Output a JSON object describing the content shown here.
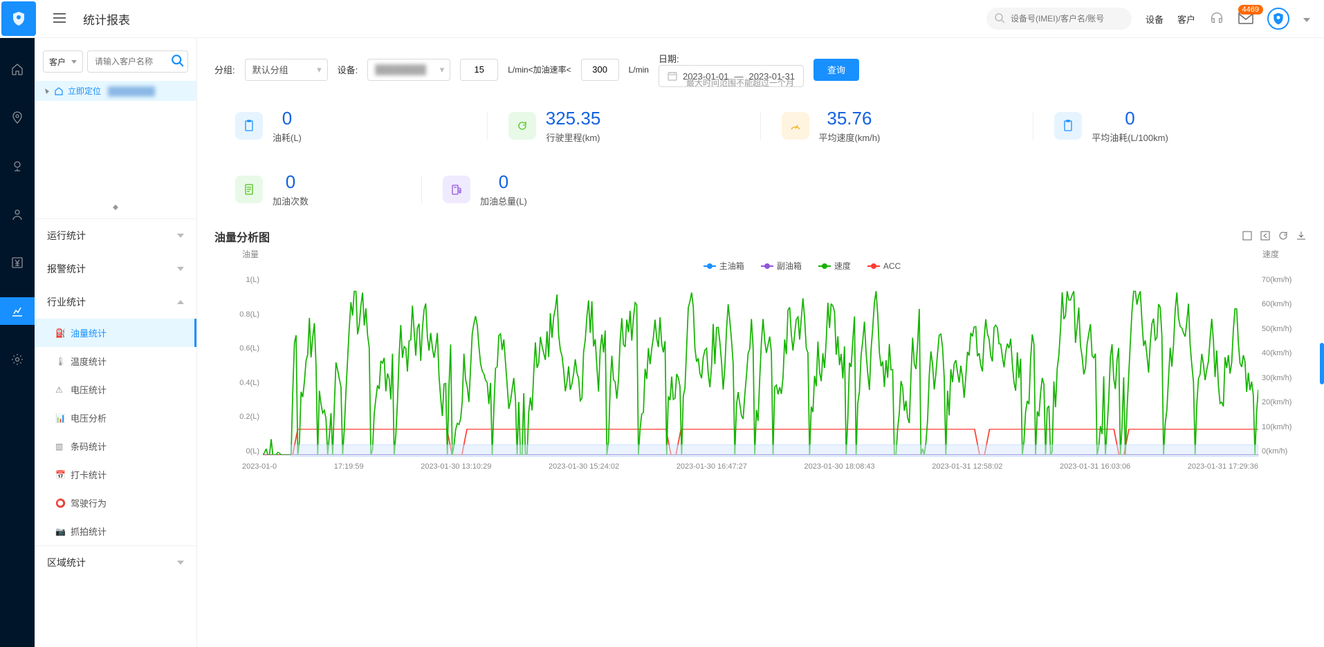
{
  "topbar": {
    "title": "统计报表",
    "search_placeholder": "设备号(IMEI)/客户名/账号",
    "link_device": "设备",
    "link_customer": "客户",
    "badge": "4469"
  },
  "sidebar": {
    "cust_label": "客户",
    "cust_placeholder": "请输入客户名称",
    "tree_locate": "立即定位",
    "tree_blur": "████████",
    "menu": {
      "run": "运行统计",
      "alarm": "报警统计",
      "industry": "行业统计",
      "region": "区域统计",
      "subs": {
        "oil": "油量统计",
        "temp": "温度统计",
        "volt": "电压统计",
        "volt_analysis": "电压分析",
        "barcode": "条码统计",
        "checkin": "打卡统计",
        "driving": "驾驶行为",
        "capture": "抓拍统计"
      }
    }
  },
  "filters": {
    "group_label": "分组:",
    "group_value": "默认分组",
    "device_label": "设备:",
    "device_value": "████████",
    "rate_min": "15",
    "rate_label": "L/min<加油速率<",
    "rate_max": "300",
    "rate_unit": "L/min",
    "date_label": "日期:",
    "date_from": "2023-01-01",
    "date_sep": "—",
    "date_to": "2023-01-31",
    "date_hint": "最大时间范围不能超过一个月",
    "query_btn": "查询"
  },
  "stats": [
    {
      "icon": "clipboard",
      "color": "blue",
      "value": "0",
      "label": "油耗(L)"
    },
    {
      "icon": "refresh",
      "color": "green",
      "value": "325.35",
      "label": "行驶里程(km)"
    },
    {
      "icon": "gauge",
      "color": "orange",
      "value": "35.76",
      "label": "平均速度(km/h)"
    },
    {
      "icon": "clipboard",
      "color": "blue",
      "value": "0",
      "label": "平均油耗(L/100km)"
    },
    {
      "icon": "doc",
      "color": "green",
      "value": "0",
      "label": "加油次数"
    },
    {
      "icon": "fuel",
      "color": "purple",
      "value": "0",
      "label": "加油总量(L)"
    }
  ],
  "chart": {
    "title": "油量分析图",
    "left_axis_title": "油量",
    "right_axis_title": "速度",
    "legend": {
      "main_tank": "主油箱",
      "aux_tank": "副油箱",
      "speed": "速度",
      "acc": "ACC"
    },
    "colors": {
      "main_tank": "#1890ff",
      "aux_tank": "#9254de",
      "speed": "#15b300",
      "acc": "#ff3b30",
      "grid": "#e8e8e8",
      "brush": "#d6e8ff"
    },
    "y_left": {
      "unit": "(L)",
      "ticks": [
        "1",
        "0.8",
        "0.6",
        "0.4",
        "0.2",
        "0"
      ]
    },
    "y_right": {
      "unit": "(km/h)",
      "ticks": [
        "70",
        "60",
        "50",
        "40",
        "30",
        "20",
        "10",
        "0"
      ]
    },
    "x_ticks": [
      "2023-01-0",
      "17:19:59",
      "2023-01-30 13:10:29",
      "2023-01-30 15:24:02",
      "2023-01-30 16:47:27",
      "2023-01-30 18:08:43",
      "2023-01-31 12:58:02",
      "2023-01-31 16:03:06",
      "2023-01-31 17:29:36"
    ],
    "acc_level": 0.13,
    "speed_series_seed": 7
  }
}
